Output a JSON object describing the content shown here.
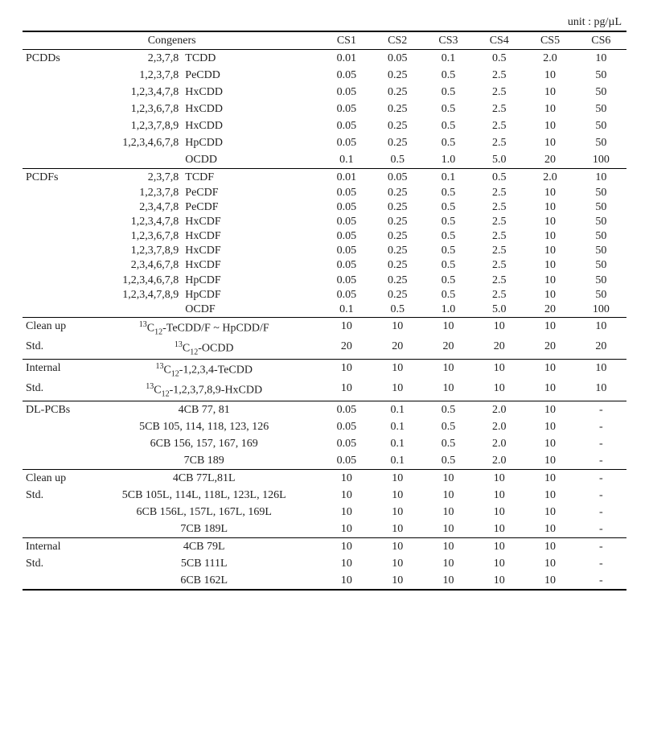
{
  "unit_label": "unit : pg/µL",
  "columns": {
    "congeners": "Congeners",
    "cs1": "CS1",
    "cs2": "CS2",
    "cs3": "CS3",
    "cs4": "CS4",
    "cs5": "CS5",
    "cs6": "CS6"
  },
  "pcdds_label": "PCDDs",
  "pcdds": [
    {
      "pos": "2,3,7,8",
      "name": "TCDD",
      "v": [
        "0.01",
        "0.05",
        "0.1",
        "0.5",
        "2.0",
        "10"
      ]
    },
    {
      "pos": "1,2,3,7,8",
      "name": "PeCDD",
      "v": [
        "0.05",
        "0.25",
        "0.5",
        "2.5",
        "10",
        "50"
      ]
    },
    {
      "pos": "1,2,3,4,7,8",
      "name": "HxCDD",
      "v": [
        "0.05",
        "0.25",
        "0.5",
        "2.5",
        "10",
        "50"
      ]
    },
    {
      "pos": "1,2,3,6,7,8",
      "name": "HxCDD",
      "v": [
        "0.05",
        "0.25",
        "0.5",
        "2.5",
        "10",
        "50"
      ]
    },
    {
      "pos": "1,2,3,7,8,9",
      "name": "HxCDD",
      "v": [
        "0.05",
        "0.25",
        "0.5",
        "2.5",
        "10",
        "50"
      ]
    },
    {
      "pos": "1,2,3,4,6,7,8",
      "name": "HpCDD",
      "v": [
        "0.05",
        "0.25",
        "0.5",
        "2.5",
        "10",
        "50"
      ]
    },
    {
      "pos": "",
      "name": "OCDD",
      "v": [
        "0.1",
        "0.5",
        "1.0",
        "5.0",
        "20",
        "100"
      ]
    }
  ],
  "pcdfs_label": "PCDFs",
  "pcdfs": [
    {
      "pos": "2,3,7,8",
      "name": "TCDF",
      "v": [
        "0.01",
        "0.05",
        "0.1",
        "0.5",
        "2.0",
        "10"
      ]
    },
    {
      "pos": "1,2,3,7,8",
      "name": "PeCDF",
      "v": [
        "0.05",
        "0.25",
        "0.5",
        "2.5",
        "10",
        "50"
      ]
    },
    {
      "pos": "2,3,4,7,8",
      "name": "PeCDF",
      "v": [
        "0.05",
        "0.25",
        "0.5",
        "2.5",
        "10",
        "50"
      ]
    },
    {
      "pos": "1,2,3,4,7,8",
      "name": "HxCDF",
      "v": [
        "0.05",
        "0.25",
        "0.5",
        "2.5",
        "10",
        "50"
      ]
    },
    {
      "pos": "1,2,3,6,7,8",
      "name": "HxCDF",
      "v": [
        "0.05",
        "0.25",
        "0.5",
        "2.5",
        "10",
        "50"
      ]
    },
    {
      "pos": "1,2,3,7,8,9",
      "name": "HxCDF",
      "v": [
        "0.05",
        "0.25",
        "0.5",
        "2.5",
        "10",
        "50"
      ]
    },
    {
      "pos": "2,3,4,6,7,8",
      "name": "HxCDF",
      "v": [
        "0.05",
        "0.25",
        "0.5",
        "2.5",
        "10",
        "50"
      ]
    },
    {
      "pos": "1,2,3,4,6,7,8",
      "name": "HpCDF",
      "v": [
        "0.05",
        "0.25",
        "0.5",
        "2.5",
        "10",
        "50"
      ]
    },
    {
      "pos": "1,2,3,4,7,8,9",
      "name": "HpCDF",
      "v": [
        "0.05",
        "0.25",
        "0.5",
        "2.5",
        "10",
        "50"
      ]
    },
    {
      "pos": "",
      "name": "OCDF",
      "v": [
        "0.1",
        "0.5",
        "1.0",
        "5.0",
        "20",
        "100"
      ]
    }
  ],
  "cleanup_label": "Clean up",
  "std_label": "Std.",
  "internal_label": "Internal",
  "dioxin_cleanup": [
    {
      "name": "TeCDD/F ~ HpCDD/F",
      "v": [
        "10",
        "10",
        "10",
        "10",
        "10",
        "10"
      ]
    },
    {
      "name": "OCDD",
      "v": [
        "20",
        "20",
        "20",
        "20",
        "20",
        "20"
      ]
    }
  ],
  "dioxin_internal": [
    {
      "name": "1,2,3,4-TeCDD",
      "v": [
        "10",
        "10",
        "10",
        "10",
        "10",
        "10"
      ]
    },
    {
      "name": "1,2,3,7,8,9-HxCDD",
      "v": [
        "10",
        "10",
        "10",
        "10",
        "10",
        "10"
      ]
    }
  ],
  "dlpcbs_label": "DL-PCBs",
  "dlpcbs": [
    {
      "name": "4CB 77,  81",
      "v": [
        "0.05",
        "0.1",
        "0.5",
        "2.0",
        "10",
        "-"
      ]
    },
    {
      "name": "5CB 105, 114, 118, 123, 126",
      "v": [
        "0.05",
        "0.1",
        "0.5",
        "2.0",
        "10",
        "-"
      ]
    },
    {
      "name": "6CB 156, 157, 167, 169",
      "v": [
        "0.05",
        "0.1",
        "0.5",
        "2.0",
        "10",
        "-"
      ]
    },
    {
      "name": "7CB 189",
      "v": [
        "0.05",
        "0.1",
        "0.5",
        "2.0",
        "10",
        "-"
      ]
    }
  ],
  "pcb_cleanup": [
    {
      "name": "4CB 77L,81L",
      "v": [
        "10",
        "10",
        "10",
        "10",
        "10",
        "-"
      ]
    },
    {
      "name": "5CB 105L, 114L, 118L, 123L, 126L",
      "v": [
        "10",
        "10",
        "10",
        "10",
        "10",
        "-"
      ]
    },
    {
      "name": "6CB 156L, 157L, 167L, 169L",
      "v": [
        "10",
        "10",
        "10",
        "10",
        "10",
        "-"
      ]
    },
    {
      "name": "7CB 189L",
      "v": [
        "10",
        "10",
        "10",
        "10",
        "10",
        "-"
      ]
    }
  ],
  "pcb_internal": [
    {
      "name": "4CB 79L",
      "v": [
        "10",
        "10",
        "10",
        "10",
        "10",
        "-"
      ]
    },
    {
      "name": "5CB 111L",
      "v": [
        "10",
        "10",
        "10",
        "10",
        "10",
        "-"
      ]
    },
    {
      "name": "6CB 162L",
      "v": [
        "10",
        "10",
        "10",
        "10",
        "10",
        "-"
      ]
    }
  ],
  "c13_prefix": "13",
  "c13_mid": "C",
  "c13_sub": "12",
  "c13_dash": "-"
}
